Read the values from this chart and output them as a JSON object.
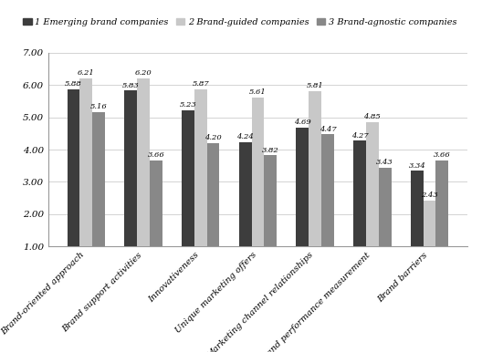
{
  "categories": [
    "Brand-oriented approach",
    "Brand support activities",
    "Innovativeness",
    "Unique marketing offers",
    "Marketing channel relationships",
    "Brand performance measurement",
    "Brand barriers"
  ],
  "series": [
    {
      "name": "1 Emerging brand companies",
      "color": "#3d3d3d",
      "values": [
        5.88,
        5.83,
        5.23,
        4.24,
        4.69,
        4.27,
        3.34
      ]
    },
    {
      "name": "2 Brand-guided companies",
      "color": "#c8c8c8",
      "values": [
        6.21,
        6.2,
        5.87,
        5.61,
        5.81,
        4.85,
        2.43
      ]
    },
    {
      "name": "3 Brand-agnostic companies",
      "color": "#888888",
      "values": [
        5.16,
        3.66,
        4.2,
        3.82,
        4.47,
        3.43,
        3.66
      ]
    }
  ],
  "ylim": [
    1.0,
    7.0
  ],
  "yticks": [
    1.0,
    2.0,
    3.0,
    4.0,
    5.0,
    6.0,
    7.0
  ],
  "bar_width": 0.22,
  "figsize": [
    5.28,
    3.86
  ],
  "dpi": 100,
  "background_color": "#ffffff",
  "fontsize_labels": 7.0,
  "fontsize_values": 6.0,
  "fontsize_legend": 7.0,
  "fontsize_yticks": 7.5
}
